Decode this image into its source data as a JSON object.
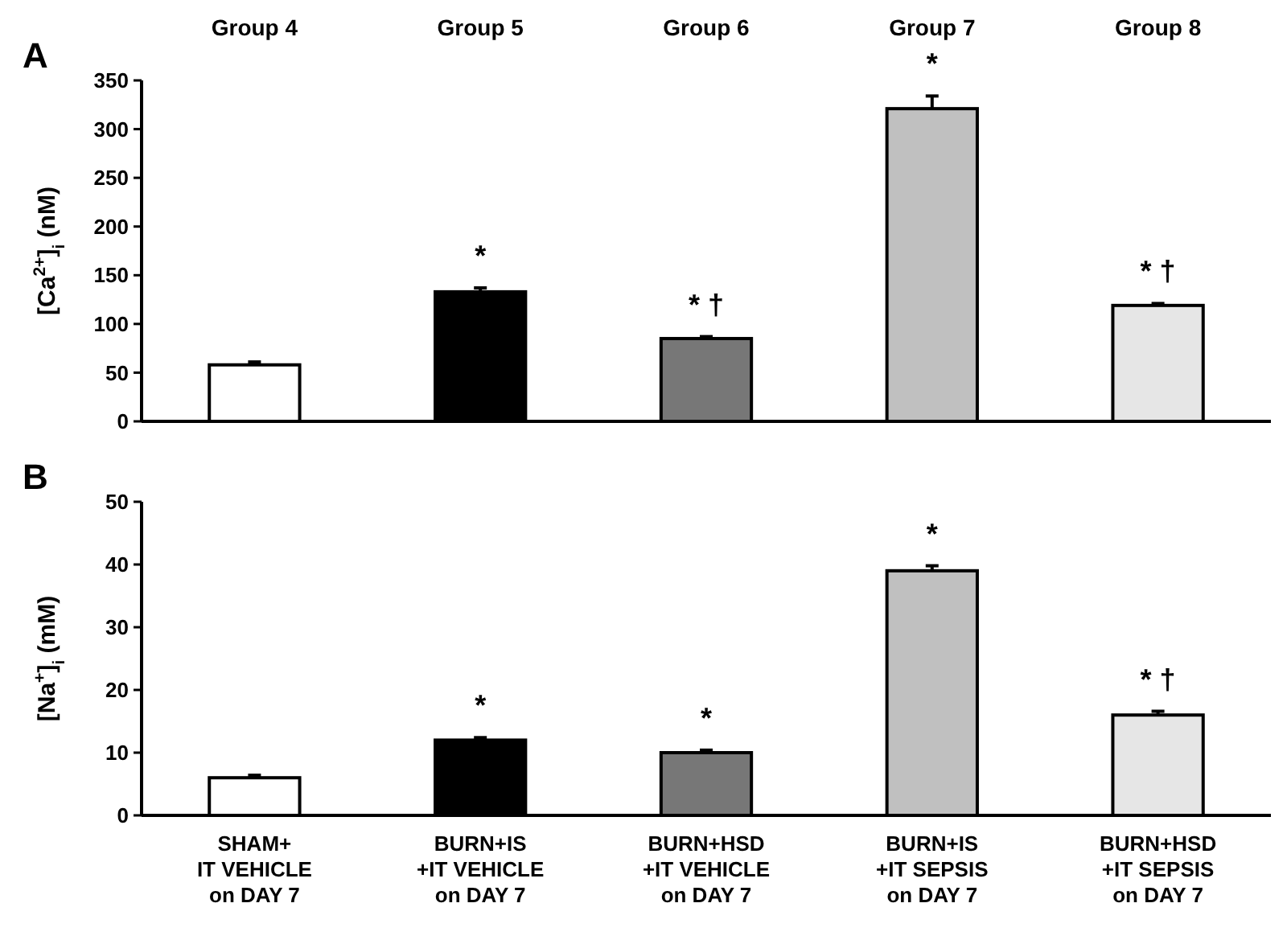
{
  "chart_data": [
    {
      "type": "bar",
      "title": "A",
      "ylabel": "[Ca$^{2+}$]$_{i}$ (nM)",
      "categories": [
        "Group 4",
        "Group 5",
        "Group 6",
        "Group 7",
        "Group 8"
      ],
      "values": [
        58,
        133,
        85,
        321,
        119
      ],
      "errors": [
        3,
        4,
        2,
        13,
        2
      ],
      "colors": [
        "#ffffff",
        "#000000",
        "#777777",
        "#c0c0c0",
        "#e6e6e6"
      ],
      "ylim": [
        0,
        350
      ],
      "yticks": [
        0,
        50,
        100,
        150,
        200,
        250,
        300,
        350
      ],
      "grid": false,
      "tick_labels": "y",
      "annotations": [
        {
          "text": "*",
          "x": "Group 5",
          "y": 133
        },
        {
          "text": "* †",
          "x": "Group 6",
          "y": 85
        },
        {
          "text": "*",
          "x": "Group 7",
          "y": 321
        },
        {
          "text": "* †",
          "x": "Group 8",
          "y": 119
        }
      ]
    },
    {
      "type": "bar",
      "title": "B",
      "ylabel": "[Na$^{+}$]$_{i}$ (mM)",
      "categories": [
        "SHAM+\nIT VEHICLE\non DAY 7",
        "BURN+IS\n+IT VEHICLE\non DAY 7",
        "BURN+HSD\n+IT VEHICLE\non DAY 7",
        "BURN+IS\n+IT SEPSIS\non DAY 7",
        "BURN+HSD\n+IT SEPSIS\non DAY 7"
      ],
      "values": [
        6,
        12,
        10,
        39,
        16
      ],
      "errors": [
        0.4,
        0.4,
        0.4,
        0.8,
        0.6
      ],
      "colors": [
        "#ffffff",
        "#000000",
        "#777777",
        "#c0c0c0",
        "#e6e6e6"
      ],
      "ylim": [
        0,
        50
      ],
      "yticks": [
        0,
        10,
        20,
        30,
        40,
        50
      ],
      "grid": false,
      "annotations": [
        {
          "text": "*",
          "x": "BURN+IS\n+IT VEHICLE\non DAY 7",
          "y": 12
        },
        {
          "text": "*",
          "x": "BURN+HSD\n+IT VEHICLE\non DAY 7",
          "y": 10
        },
        {
          "text": "*",
          "x": "BURN+IS\n+IT SEPSIS\non DAY 7",
          "y": 39
        },
        {
          "text": "* †",
          "x": "BURN+HSD\n+IT SEPSIS\non DAY 7",
          "y": 16
        }
      ]
    }
  ]
}
